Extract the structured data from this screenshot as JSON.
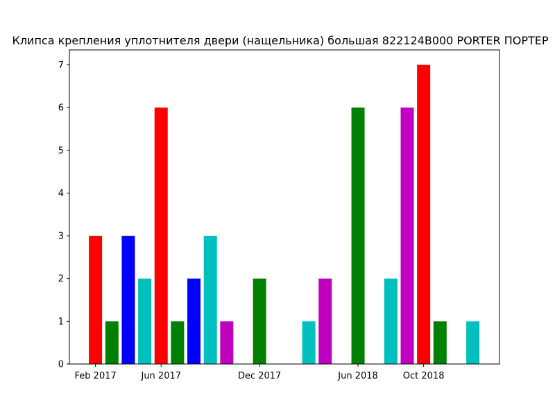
{
  "chart_data": {
    "type": "bar",
    "title": "Клипса крепления уплотнителя двери (нащельника) большая 822124B000 PORTER ПОРТЕР",
    "xlabel": "",
    "ylabel": "",
    "ylim": [
      0,
      7.35
    ],
    "x_ticks": [
      "Feb 2017",
      "Jun 2017",
      "Dec 2017",
      "Jun 2018",
      "Oct 2018"
    ],
    "y_ticks": [
      "0",
      "1",
      "2",
      "3",
      "4",
      "5",
      "6",
      "7"
    ],
    "grid": false,
    "legend": "none",
    "bars": [
      {
        "x": "2017-02",
        "value": 3,
        "color": "#ff0000"
      },
      {
        "x": "2017-03",
        "value": 1,
        "color": "#008000"
      },
      {
        "x": "2017-04",
        "value": 3,
        "color": "#0000ff"
      },
      {
        "x": "2017-05",
        "value": 2,
        "color": "#00bfbf"
      },
      {
        "x": "2017-06",
        "value": 6,
        "color": "#ff0000"
      },
      {
        "x": "2017-07",
        "value": 1,
        "color": "#008000"
      },
      {
        "x": "2017-08",
        "value": 2,
        "color": "#0000ff"
      },
      {
        "x": "2017-09",
        "value": 3,
        "color": "#00bfbf"
      },
      {
        "x": "2017-10",
        "value": 1,
        "color": "#bf00bf"
      },
      {
        "x": "2017-12",
        "value": 2,
        "color": "#008000"
      },
      {
        "x": "2018-03",
        "value": 1,
        "color": "#00bfbf"
      },
      {
        "x": "2018-04",
        "value": 2,
        "color": "#bf00bf"
      },
      {
        "x": "2018-06",
        "value": 6,
        "color": "#008000"
      },
      {
        "x": "2018-08",
        "value": 2,
        "color": "#00bfbf"
      },
      {
        "x": "2018-09",
        "value": 6,
        "color": "#bf00bf"
      },
      {
        "x": "2018-10",
        "value": 7,
        "color": "#ff0000"
      },
      {
        "x": "2018-11",
        "value": 1,
        "color": "#008000"
      },
      {
        "x": "2019-01",
        "value": 1,
        "color": "#00bfbf"
      }
    ]
  }
}
